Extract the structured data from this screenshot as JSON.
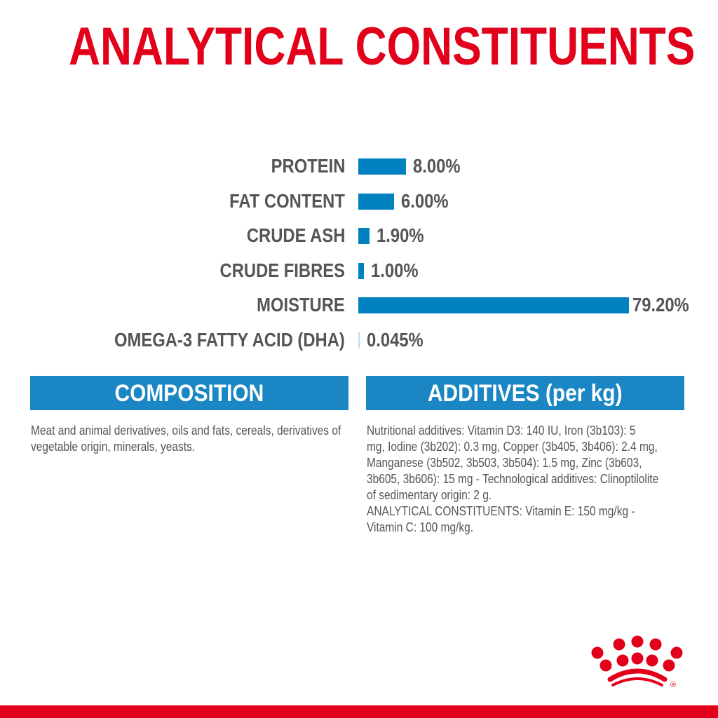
{
  "title": "ANALYTICAL CONSTITUENTS",
  "colors": {
    "accent": "#e2001a",
    "bar": "#0082c0",
    "text": "#555555"
  },
  "constituents": [
    {
      "label": "PROTEIN",
      "value": 8.0,
      "display": "8.00%"
    },
    {
      "label": "FAT CONTENT",
      "value": 6.0,
      "display": "6.00%"
    },
    {
      "label": "CRUDE ASH",
      "value": 1.9,
      "display": "1.90%"
    },
    {
      "label": "CRUDE FIBRES",
      "value": 1.0,
      "display": "1.00%"
    },
    {
      "label": "MOISTURE",
      "value": 79.2,
      "display": "79.20%"
    },
    {
      "label": "OMEGA-3 FATTY ACID (DHA)",
      "value": 0.045,
      "display": "0.045%"
    }
  ],
  "composition": {
    "heading": "COMPOSITION",
    "text": "Meat and animal derivatives, oils and fats, cereals, derivatives of vegetable origin, minerals, yeasts."
  },
  "additives": {
    "heading": "ADDITIVES (per kg)",
    "lines": [
      "Nutritional additives: Vitamin D3: 140 IU, Iron (3b103): 5",
      "mg, Iodine (3b202): 0.3 mg, Copper (3b405, 3b406): 2.4 mg,",
      "Manganese (3b502, 3b503, 3b504): 1.5 mg, Zinc (3b603,",
      "3b605, 3b606): 15 mg - Technological additives: Clinoptilolite",
      "of sedimentary origin: 2 g.",
      "ANALYTICAL CONSTITUENTS: Vitamin E: 150 mg/kg -",
      "Vitamin C: 100 mg/kg."
    ]
  },
  "logo": {
    "icon": "crown-icon",
    "mark": "®"
  }
}
